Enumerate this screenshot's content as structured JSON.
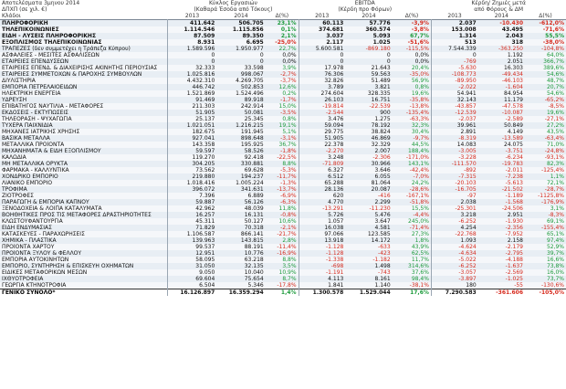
{
  "header": {
    "title": "Αποτελέσματα 3μηνου 2014",
    "currency_note": "ΔΠΧΠ (σε χιλ. €)",
    "sector_col": "Κλάδοι",
    "groups": [
      {
        "name": "Κύκλος Εργασιών",
        "sub": "(Καθαρά Έσοδα από Τόκους)"
      },
      {
        "name": "EBITDA",
        "sub": "(Κέρδη προ Φόρων)"
      },
      {
        "name": "Κέρδη/ Ζημιές μετά",
        "sub": "από Φόρους & ΔΜ"
      }
    ],
    "y1": "2013",
    "y2": "2014",
    "dpct": "Δ(%)"
  },
  "rows": [
    {
      "name": "ΠΛΗΡΟΦΟΡΙΚΗ",
      "v": [
        "411.642",
        "506.705",
        "23,1%",
        "60.113",
        "57.776",
        "-3,9%",
        "2.037",
        "-10.430",
        "-612,0%"
      ],
      "bold": true,
      "c": [
        "k",
        "k",
        "g",
        "k",
        "k",
        "r",
        "k",
        "r",
        "r"
      ]
    },
    {
      "name": "ΤΗΛΕΠΙΚΟΙΝΩΝΙΕΣ",
      "v": [
        "1.114.546",
        "1.115.856",
        "0,1%",
        "374.681",
        "360.574",
        "-3,8%",
        "153.008",
        "43.495",
        "-71,6%"
      ],
      "bold": true,
      "c": [
        "k",
        "k",
        "g",
        "k",
        "k",
        "r",
        "k",
        "k",
        "r"
      ]
    },
    {
      "name": "ΕΙΔΗ - ΛΥΣΕΙΣ ΠΛΗΡΟΦΟΡΙΚΗΣ",
      "v": [
        "87.509",
        "89.350",
        "2,1%",
        "3.037",
        "5.093",
        "67,7%",
        "1.314",
        "2.043",
        "55,5%"
      ],
      "bold": true,
      "c": [
        "k",
        "k",
        "g",
        "k",
        "k",
        "g",
        "k",
        "k",
        "g"
      ]
    },
    {
      "name": "ΕΞΟΠΛΙΣΜΟΣ ΤΗΛΕΠΙΚΟΙΝΩΝΙΑΣ",
      "v": [
        "8.931",
        "6.695",
        "-25,0%",
        "2.117",
        "1.025",
        "-51,6%",
        "513",
        "318",
        "-38,0%"
      ],
      "bold": true,
      "c": [
        "k",
        "k",
        "r",
        "k",
        "k",
        "r",
        "k",
        "k",
        "r"
      ]
    },
    {
      "name": "ΤΡΑΠΕΖΕΣ (δεν συμμετέχει η Τράπεζα Κύπρου)",
      "v": [
        "1.589.596",
        "1.950.977",
        "22,7%",
        "5.600.581",
        "-869.180",
        "-115,5%",
        "7.544.339",
        "-363.250",
        "-104,8%"
      ],
      "dim": true,
      "c": [
        "k",
        "k",
        "g",
        "k",
        "r",
        "r",
        "k",
        "r",
        "r"
      ]
    },
    {
      "name": "ΑΣΦΑΛΕΙΕΣ - ΜΕΣΙΤΕΣ ΑΣΦΑΛΙΣΕΩΝ",
      "v": [
        "0",
        "0",
        "0,0%",
        "0",
        "0",
        "0,0%",
        "0",
        "1.192",
        "64,0%"
      ],
      "c": [
        "k",
        "k",
        "k",
        "k",
        "k",
        "k",
        "k",
        "k",
        "g"
      ]
    },
    {
      "name": "ΕΤΑΙΡΕΙΕΣ ΕΠΕΝΔΥΣΕΩΝ",
      "v": [
        "0",
        "0",
        "0,0%",
        "0",
        "0",
        "0,0%",
        "-769",
        "2.051",
        "366,7%"
      ],
      "c": [
        "k",
        "k",
        "k",
        "k",
        "k",
        "k",
        "r",
        "k",
        "g"
      ]
    },
    {
      "name": "ΕΤΑΙΡΕΙΕΣ ΕΠΕΝΔ. & ΔΙΑΧΕΙΡΙΣΗΣ ΑΚΙΝΗΤΗΣ ΠΕΡΙΟΥΣΙΑΣ",
      "v": [
        "32.333",
        "33.598",
        "3,9%",
        "17.978",
        "21.643",
        "20,4%",
        "-5.630",
        "16.303",
        "389,6%"
      ],
      "c": [
        "k",
        "k",
        "g",
        "k",
        "k",
        "g",
        "r",
        "k",
        "g"
      ]
    },
    {
      "name": "ΕΤΑΙΡΕΙΕΣ ΣΥΜΜΕΤΟΧΩΝ & ΠΑΡΟΧΗΣ ΣΥΜΒΟΥΛΩΝ",
      "v": [
        "1.025.816",
        "998.067",
        "-2,7%",
        "76.306",
        "59.563",
        "-35,0%",
        "-108.773",
        "-49.434",
        "54,6%"
      ],
      "c": [
        "k",
        "k",
        "r",
        "k",
        "k",
        "r",
        "r",
        "r",
        "g"
      ]
    },
    {
      "name": "ΔΙΥΛΙΣΤΗΡΙΑ",
      "v": [
        "4.432.310",
        "4.269.705",
        "-3,7%",
        "32.826",
        "51.489",
        "56,9%",
        "-89.950",
        "-46.103",
        "48,7%"
      ],
      "c": [
        "k",
        "k",
        "r",
        "k",
        "k",
        "g",
        "r",
        "r",
        "g"
      ]
    },
    {
      "name": "ΕΜΠΟΡΙΑ ΠΕΤΡΕΛΑΙΟΕΙΔΩΝ",
      "v": [
        "446.742",
        "502.853",
        "12,6%",
        "3.789",
        "3.821",
        "0,8%",
        "-2.022",
        "-1.604",
        "20,7%"
      ],
      "c": [
        "k",
        "k",
        "g",
        "k",
        "k",
        "g",
        "r",
        "r",
        "g"
      ]
    },
    {
      "name": "ΗΛΕΚΤΡΙΚΗ ΕΝΕΡΓΕΙΑ",
      "v": [
        "1.521.869",
        "1.524.496",
        "0,2%",
        "274.604",
        "328.335",
        "19,6%",
        "54.941",
        "84.954",
        "54,6%"
      ],
      "c": [
        "k",
        "k",
        "g",
        "k",
        "k",
        "g",
        "k",
        "k",
        "g"
      ]
    },
    {
      "name": "ΥΔΡΕΥΣΗ",
      "v": [
        "91.469",
        "89.918",
        "-1,7%",
        "26.103",
        "16.751",
        "-35,8%",
        "32.143",
        "11.179",
        "-65,2%"
      ],
      "c": [
        "k",
        "k",
        "r",
        "k",
        "k",
        "r",
        "k",
        "k",
        "r"
      ]
    },
    {
      "name": "ΕΠΙΒΑΤΗΓΟΣ ΝΑΥΤΙΛΙΑ - ΜΕΤΑΦΟΡΕΣ",
      "v": [
        "211.303",
        "242.914",
        "15,0%",
        "-19.814",
        "-22.539",
        "-13,8%",
        "-43.857",
        "-47.578",
        "-8,5%"
      ],
      "c": [
        "k",
        "k",
        "g",
        "r",
        "r",
        "r",
        "r",
        "r",
        "r"
      ]
    },
    {
      "name": "ΕΚΔΟΣΕΙΣ - ΕΚΤΥΠΩΣΕΙΣ",
      "v": [
        "51.905",
        "50.081",
        "-3,5%",
        "-2.544",
        "900",
        "-135,4%",
        "-12.539",
        "-10.087",
        "19,6%"
      ],
      "c": [
        "k",
        "k",
        "r",
        "r",
        "k",
        "r",
        "r",
        "r",
        "g"
      ]
    },
    {
      "name": "ΤΗΛΕΟΡΑΣΗ - ΨΥΧΑΓΩΓΙΑ",
      "v": [
        "25.137",
        "25.345",
        "0,8%",
        "3.476",
        "1.275",
        "-63,3%",
        "-2.037",
        "-2.589",
        "-27,1%"
      ],
      "c": [
        "k",
        "k",
        "g",
        "k",
        "k",
        "r",
        "r",
        "r",
        "r"
      ]
    },
    {
      "name": "ΤΥΧΕΡΑ ΠΑΙΧΝΙΔΙΑ",
      "v": [
        "1.021.051",
        "1.216.215",
        "19,1%",
        "59.094",
        "78.192",
        "32,3%",
        "39.961",
        "50.849",
        "27,2%"
      ],
      "c": [
        "k",
        "k",
        "g",
        "k",
        "k",
        "g",
        "k",
        "k",
        "g"
      ]
    },
    {
      "name": "ΜΗΧΑΝΕΣ ΙΑΤΡΙΚΗΣ ΧΡΗΣΗΣ",
      "v": [
        "182.675",
        "191.945",
        "5,1%",
        "29.775",
        "38.824",
        "30,4%",
        "2.891",
        "4.149",
        "43,5%"
      ],
      "c": [
        "k",
        "k",
        "g",
        "k",
        "k",
        "g",
        "k",
        "k",
        "g"
      ]
    },
    {
      "name": "ΒΑΣΙΚΑ ΜΕΤΑΛΛΑ",
      "v": [
        "927.041",
        "898.648",
        "-3,1%",
        "51.905",
        "46.869",
        "-9,7%",
        "-8.319",
        "-13.589",
        "-63,4%"
      ],
      "c": [
        "k",
        "k",
        "r",
        "k",
        "k",
        "r",
        "r",
        "r",
        "r"
      ]
    },
    {
      "name": "ΜΕΤΑΛΛΙΚΑ ΠΡΟΪΟΝΤΑ",
      "v": [
        "143.358",
        "195.925",
        "36,7%",
        "22.378",
        "32.329",
        "44,5%",
        "14.083",
        "24.075",
        "71,0%"
      ],
      "c": [
        "k",
        "k",
        "g",
        "k",
        "k",
        "g",
        "k",
        "k",
        "g"
      ]
    },
    {
      "name": "ΜΗΧΑΝΗΜΑΤΑ & ΕΙΔΗ ΕΞΟΠΛΙΣΜΟΥ",
      "v": [
        "59.597",
        "58.526",
        "-1,8%",
        "-2.270",
        "2.007",
        "188,4%",
        "-3.005",
        "-3.751",
        "-24,8%"
      ],
      "c": [
        "k",
        "k",
        "r",
        "r",
        "k",
        "g",
        "r",
        "r",
        "r"
      ]
    },
    {
      "name": "ΚΑΛΩΔΙΑ",
      "v": [
        "119.270",
        "92.418",
        "-22,5%",
        "3.248",
        "-2.306",
        "-171,0%",
        "-3.228",
        "-6.234",
        "-93,1%"
      ],
      "c": [
        "k",
        "k",
        "r",
        "k",
        "r",
        "r",
        "r",
        "r",
        "r"
      ]
    },
    {
      "name": "ΜΗ ΜΕΤΑΛΛΙΚΑ ΟΡΥΚΤΑ",
      "v": [
        "304.205",
        "330.881",
        "8,8%",
        "-71.809",
        "30.966",
        "143,1%",
        "-111.570",
        "-19.783",
        "82,3%"
      ],
      "c": [
        "k",
        "k",
        "g",
        "r",
        "k",
        "g",
        "r",
        "r",
        "g"
      ]
    },
    {
      "name": "ΦΑΡΜΑΚΑ - ΚΑΛΛΥΝΤΙΚΑ",
      "v": [
        "73.562",
        "69.628",
        "-5,3%",
        "6.327",
        "3.646",
        "-42,4%",
        "-892",
        "-2.011",
        "-125,4%"
      ],
      "c": [
        "k",
        "k",
        "r",
        "k",
        "k",
        "r",
        "r",
        "r",
        "r"
      ]
    },
    {
      "name": "ΧΟΝΔΡΙΚΟ ΕΜΠΟΡΙΟ",
      "v": [
        "219.880",
        "194.237",
        "-11,7%",
        "6.512",
        "6.055",
        "-7,0%",
        "-7.315",
        "-7.238",
        "1,1%"
      ],
      "c": [
        "k",
        "k",
        "r",
        "k",
        "k",
        "r",
        "r",
        "r",
        "g"
      ]
    },
    {
      "name": "ΛΙΑΝΙΚΟ ΕΜΠΟΡΙΟ",
      "v": [
        "1.018.416",
        "1.005.224",
        "-1,3%",
        "65.288",
        "81.064",
        "24,2%",
        "-20.103",
        "-5.613",
        "72,1%"
      ],
      "c": [
        "k",
        "k",
        "r",
        "k",
        "k",
        "g",
        "r",
        "r",
        "g"
      ]
    },
    {
      "name": "ΤΡΟΦΙΜΑ",
      "v": [
        "396.072",
        "341.631",
        "-13,7%",
        "28.136",
        "20.087",
        "-28,6%",
        "-16.705",
        "-21.502",
        "-28,7%"
      ],
      "c": [
        "k",
        "k",
        "r",
        "k",
        "k",
        "r",
        "r",
        "r",
        "r"
      ]
    },
    {
      "name": "ΖΙΟΤΡΟΦΕΣ",
      "v": [
        "7.396",
        "6.889",
        "-6,9%",
        "620",
        "-416",
        "-167,1%",
        "-97",
        "-1.189",
        "-1125,8%"
      ],
      "c": [
        "k",
        "k",
        "r",
        "k",
        "r",
        "r",
        "r",
        "r",
        "r"
      ]
    },
    {
      "name": "ΠΑΡΑΓΩΓΗ & ΕΜΠΟΡΙΑ ΚΑΠΝΟΥ",
      "v": [
        "59.887",
        "56.126",
        "-6,3%",
        "4.770",
        "2.299",
        "-51,8%",
        "2.038",
        "-1.568",
        "-176,9%"
      ],
      "c": [
        "k",
        "k",
        "r",
        "k",
        "k",
        "r",
        "k",
        "r",
        "r"
      ]
    },
    {
      "name": "ΞΕΝΟΔΟΧΕΙΑ & ΛΟΙΠΑ ΚΑΤΑΛΥΜΑΤΑ",
      "v": [
        "42.962",
        "48.039",
        "11,8%",
        "-13.291",
        "-11.230",
        "15,5%",
        "-25.301",
        "-24.506",
        "3,1%"
      ],
      "c": [
        "k",
        "k",
        "g",
        "r",
        "r",
        "g",
        "r",
        "r",
        "g"
      ]
    },
    {
      "name": "ΒΟΗΘΗΤΙΚΕΣ ΠΡΟΣ ΤΙΣ ΜΕΤΑΦΟΡΕΣ ΔΡΑΣΤΗΡΙΟΤΗΤΕΣ",
      "v": [
        "16.257",
        "16.131",
        "-0,8%",
        "5.726",
        "5.476",
        "-4,4%",
        "3.218",
        "2.951",
        "-8,3%"
      ],
      "c": [
        "k",
        "k",
        "r",
        "k",
        "k",
        "r",
        "k",
        "k",
        "r"
      ]
    },
    {
      "name": "ΚΛΩΣΤΟΫΦΑΝΤΟΥΡΓΙΑ",
      "v": [
        "45.311",
        "50.127",
        "10,6%",
        "1.057",
        "3.647",
        "245,0%",
        "-6.252",
        "-1.930",
        "69,1%"
      ],
      "c": [
        "k",
        "k",
        "g",
        "k",
        "k",
        "g",
        "r",
        "r",
        "g"
      ]
    },
    {
      "name": "ΕΙΔΗ ΕΝΔΥΜΑΣΙΑΣ",
      "v": [
        "71.829",
        "70.318",
        "-2,1%",
        "16.038",
        "4.581",
        "-71,4%",
        "4.254",
        "-2.356",
        "-155,4%"
      ],
      "c": [
        "k",
        "k",
        "r",
        "k",
        "k",
        "r",
        "k",
        "r",
        "r"
      ]
    },
    {
      "name": "ΚΑΤΑΣΚΕΥΕΣ - ΠΑΡΑΧΩΡΗΣΕΙΣ",
      "v": [
        "1.106.587",
        "866.141",
        "-21,7%",
        "97.066",
        "123.585",
        "27,3%",
        "-22.768",
        "-7.952",
        "65,1%"
      ],
      "c": [
        "k",
        "k",
        "r",
        "k",
        "k",
        "g",
        "r",
        "r",
        "g"
      ]
    },
    {
      "name": "ΧΗΜΙΚΑ - ΠΛΑΣΤΙΚΑ",
      "v": [
        "139.963",
        "143.815",
        "2,8%",
        "13.918",
        "14.172",
        "1,8%",
        "1.093",
        "2.158",
        "97,4%"
      ],
      "c": [
        "k",
        "k",
        "g",
        "k",
        "k",
        "g",
        "k",
        "k",
        "g"
      ]
    },
    {
      "name": "ΠΡΟΪΟΝΤΑ ΧΑΡΤΟΥ",
      "v": [
        "99.537",
        "88.191",
        "-11,4%",
        "-1.128",
        "-633",
        "43,9%",
        "-4.624",
        "-2.179",
        "52,9%"
      ],
      "c": [
        "k",
        "k",
        "r",
        "r",
        "r",
        "g",
        "r",
        "r",
        "g"
      ]
    },
    {
      "name": "ΠΡΟΪΟΝΤΑ ΞΥΛΟΥ & ΦΕΛΛΟΥ",
      "v": [
        "12.951",
        "10.776",
        "-16,9%",
        "-1.128",
        "-423",
        "62,5%",
        "-4.634",
        "-2.795",
        "39,7%"
      ],
      "c": [
        "k",
        "k",
        "r",
        "r",
        "r",
        "g",
        "r",
        "r",
        "g"
      ]
    },
    {
      "name": "ΕΜΠΟΡΙΑ ΑΥΤΟΚΙΝΗΤΩΝ",
      "v": [
        "58.095",
        "63.218",
        "8,8%",
        "-1.338",
        "-1.182",
        "11,7%",
        "-5.022",
        "-4.188",
        "16,6%"
      ],
      "c": [
        "k",
        "k",
        "g",
        "r",
        "r",
        "g",
        "r",
        "r",
        "g"
      ]
    },
    {
      "name": "ΕΜΠΟΡΙΟ, ΣΥΝΤΗΡΗΣΗ & ΕΠΙΣΚΕΥΗ ΟΧΗΜΑΤΩΝ",
      "v": [
        "31.050",
        "32.135",
        "3,5%",
        "-698",
        "1.498",
        "314,6%",
        "-6.252",
        "-1.637",
        "73,8%"
      ],
      "c": [
        "k",
        "k",
        "g",
        "r",
        "k",
        "g",
        "r",
        "r",
        "g"
      ]
    },
    {
      "name": "ΕΙΔΙΚΕΣ ΜΕΤΑΦΟΡΙΚΩΝ ΜΕΣΩΝ",
      "v": [
        "9.050",
        "10.040",
        "10,9%",
        "-1.191",
        "-743",
        "37,6%",
        "-3.057",
        "-2.569",
        "16,0%"
      ],
      "c": [
        "k",
        "k",
        "g",
        "r",
        "r",
        "g",
        "r",
        "r",
        "g"
      ]
    },
    {
      "name": "ΙΧΘΥΟΤΡΟΦΕΙΑ",
      "v": [
        "69.604",
        "75.654",
        "8,7%",
        "4.113",
        "8.161",
        "98,4%",
        "-3.897",
        "-1.025",
        "73,7%"
      ],
      "c": [
        "k",
        "k",
        "g",
        "k",
        "k",
        "g",
        "r",
        "r",
        "g"
      ]
    },
    {
      "name": "ΓΕΩΡΓΙΑ ΚΤΗΝΟΤΡΟΦΙΑ",
      "v": [
        "6.504",
        "5.346",
        "-17,8%",
        "1.841",
        "1.140",
        "-38,1%",
        "180",
        "-55",
        "-130,6%"
      ],
      "c": [
        "k",
        "k",
        "r",
        "k",
        "k",
        "r",
        "k",
        "r",
        "r"
      ]
    }
  ],
  "total": {
    "name": "ΓΕΝΙΚΟ ΣΥΝΟΛΟ*",
    "v": [
      "16.126.897",
      "16.359.294",
      "1,4%",
      "1.300.578",
      "1.529.044",
      "17,6%",
      "7.290.583",
      "-361.606",
      "-105,0%"
    ],
    "c": [
      "k",
      "k",
      "g",
      "k",
      "k",
      "g",
      "k",
      "r",
      "r"
    ]
  },
  "colors": {
    "positive": "#1c9a3b",
    "negative": "#d62a1d",
    "band": "#e8eef4"
  }
}
